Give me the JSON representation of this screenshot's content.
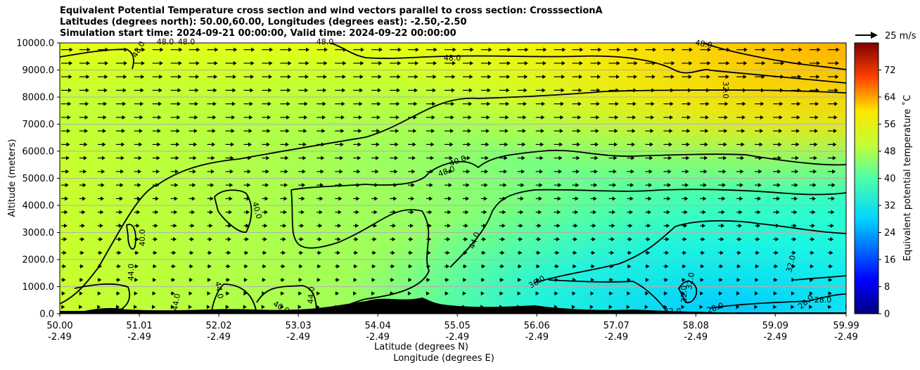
{
  "header": {
    "title_line1": "Equivalent Potential Temperature cross section and wind vectors parallel to cross section: CrosssectionA",
    "title_line2": "Latitudes (degrees north): 50.00,60.00, Longitudes (degrees east): -2.50,-2.50",
    "title_line3": "Simulation start time: 2024-09-21 00:00:00, Valid time: 2024-09-22 00:00:00"
  },
  "chart_data": {
    "type": "heatmap",
    "ylabel": "Altitude (meters)",
    "xlabel_line1": "Latitude (degrees N)",
    "xlabel_line2": "Longitude (degrees E)",
    "ylim": [
      0,
      10000
    ],
    "y_ticks": [
      "0.0",
      "1000.0",
      "2000.0",
      "3000.0",
      "4000.0",
      "5000.0",
      "6000.0",
      "7000.0",
      "8000.0",
      "9000.0",
      "10000.0"
    ],
    "x_ticks": [
      {
        "lat": "50.00",
        "lon": "-2.49"
      },
      {
        "lat": "51.01",
        "lon": "-2.49"
      },
      {
        "lat": "52.02",
        "lon": "-2.49"
      },
      {
        "lat": "53.03",
        "lon": "-2.49"
      },
      {
        "lat": "54.04",
        "lon": "-2.49"
      },
      {
        "lat": "55.05",
        "lon": "-2.49"
      },
      {
        "lat": "56.06",
        "lon": "-2.49"
      },
      {
        "lat": "57.07",
        "lon": "-2.49"
      },
      {
        "lat": "58.08",
        "lon": "-2.49"
      },
      {
        "lat": "59.09",
        "lon": "-2.49"
      },
      {
        "lat": "59.99",
        "lon": "-2.49"
      }
    ],
    "grid": "horizontal",
    "colorbar": {
      "label": "Equivalent potential temperature $^\\circ$C",
      "label_display": "Equivalent potential temperature ˚C",
      "range": [
        0,
        80
      ],
      "ticks": [
        "0",
        "8",
        "16",
        "24",
        "32",
        "40",
        "48",
        "56",
        "64",
        "72"
      ]
    },
    "quiver_key": "25 m/s",
    "contour_labels": [
      "48.0",
      "48.0",
      "48.0",
      "48.0",
      "48.0",
      "48.0",
      "32.0",
      "48.0",
      "40.0",
      "40.0",
      "40.0",
      "44.0",
      "44.0",
      "44.0",
      "44.0",
      "36.0",
      "32.0",
      "32.0",
      "32.0",
      "32.0",
      "28.0",
      "28.0",
      "28.0",
      "40.0",
      "44.0"
    ],
    "theta_e_columns_by_latitude": [
      {
        "lat": 50.0,
        "surface": 44,
        "km2": 43,
        "km4": 44,
        "km6": 45,
        "km8": 47,
        "km10": 48
      },
      {
        "lat": 51.01,
        "surface": 44,
        "km2": 43,
        "km4": 42,
        "km6": 45,
        "km8": 47,
        "km10": 48
      },
      {
        "lat": 52.02,
        "surface": 43,
        "km2": 41,
        "km4": 41,
        "km6": 44,
        "km8": 46,
        "km10": 48
      },
      {
        "lat": 53.03,
        "surface": 43,
        "km2": 40,
        "km4": 40,
        "km6": 43,
        "km8": 46,
        "km10": 48
      },
      {
        "lat": 54.04,
        "surface": 42,
        "km2": 38,
        "km4": 39,
        "km6": 42,
        "km8": 45,
        "km10": 48
      },
      {
        "lat": 55.05,
        "surface": 36,
        "km2": 37,
        "km4": 38,
        "km6": 41,
        "km8": 45,
        "km10": 48
      },
      {
        "lat": 56.06,
        "surface": 33,
        "km2": 35,
        "km4": 37,
        "km6": 40,
        "km8": 45,
        "km10": 49
      },
      {
        "lat": 57.07,
        "surface": 32,
        "km2": 34,
        "km4": 37,
        "km6": 40,
        "km8": 45,
        "km10": 50
      },
      {
        "lat": 58.08,
        "surface": 31,
        "km2": 33,
        "km4": 36,
        "km6": 40,
        "km8": 45,
        "km10": 52
      },
      {
        "lat": 59.09,
        "surface": 29,
        "km2": 33,
        "km4": 36,
        "km6": 40,
        "km8": 46,
        "km10": 54
      },
      {
        "lat": 59.99,
        "surface": 28,
        "km2": 33,
        "km4": 36,
        "km6": 40,
        "km8": 47,
        "km10": 56
      }
    ]
  }
}
